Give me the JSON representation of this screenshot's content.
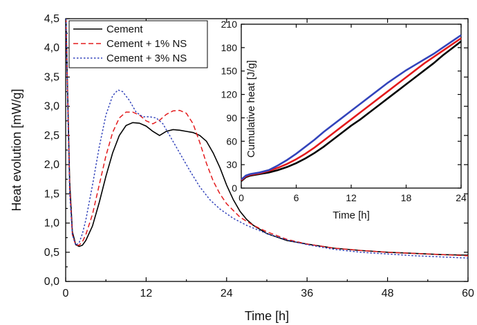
{
  "chart_data": [
    {
      "type": "line",
      "title": "",
      "xlabel": "Time [h]",
      "ylabel": "Heat evolution [mW/g]",
      "xlim": [
        0,
        60
      ],
      "ylim": [
        0,
        4.5
      ],
      "xticks": [
        "0",
        "12",
        "24",
        "36",
        "48",
        "60"
      ],
      "yticks": [
        "0,0",
        "0,5",
        "1,0",
        "1,5",
        "2,0",
        "2,5",
        "3,0",
        "3,5",
        "4,0",
        "4,5"
      ],
      "grid": false,
      "legend_position": "top-left",
      "series": [
        {
          "name": "Cement",
          "color": "#000000",
          "style": "solid",
          "points": [
            [
              0.05,
              4.5
            ],
            [
              0.3,
              3.2
            ],
            [
              0.6,
              1.7
            ],
            [
              1.0,
              0.85
            ],
            [
              1.5,
              0.63
            ],
            [
              2.0,
              0.6
            ],
            [
              2.5,
              0.62
            ],
            [
              3.0,
              0.7
            ],
            [
              4.0,
              0.95
            ],
            [
              5.0,
              1.35
            ],
            [
              6.0,
              1.8
            ],
            [
              7.0,
              2.2
            ],
            [
              8.0,
              2.5
            ],
            [
              9.0,
              2.67
            ],
            [
              10.0,
              2.72
            ],
            [
              11.0,
              2.71
            ],
            [
              12.0,
              2.66
            ],
            [
              13.0,
              2.57
            ],
            [
              14.0,
              2.5
            ],
            [
              15.0,
              2.57
            ],
            [
              16.0,
              2.6
            ],
            [
              17.0,
              2.59
            ],
            [
              18.0,
              2.57
            ],
            [
              19.0,
              2.55
            ],
            [
              20.0,
              2.5
            ],
            [
              21.0,
              2.4
            ],
            [
              22.0,
              2.2
            ],
            [
              23.0,
              1.95
            ],
            [
              24.0,
              1.65
            ],
            [
              25.0,
              1.4
            ],
            [
              26.0,
              1.2
            ],
            [
              27.0,
              1.06
            ],
            [
              28.0,
              0.96
            ],
            [
              30.0,
              0.82
            ],
            [
              33.0,
              0.7
            ],
            [
              36.0,
              0.64
            ],
            [
              40.0,
              0.57
            ],
            [
              44.0,
              0.53
            ],
            [
              48.0,
              0.5
            ],
            [
              52.0,
              0.48
            ],
            [
              56.0,
              0.46
            ],
            [
              60.0,
              0.45
            ]
          ]
        },
        {
          "name": "Cement + 1% NS",
          "color": "#e31a1c",
          "style": "dashed",
          "points": [
            [
              0.05,
              4.5
            ],
            [
              0.3,
              3.1
            ],
            [
              0.6,
              1.6
            ],
            [
              1.0,
              0.8
            ],
            [
              1.5,
              0.62
            ],
            [
              2.0,
              0.62
            ],
            [
              2.5,
              0.68
            ],
            [
              3.0,
              0.8
            ],
            [
              4.0,
              1.15
            ],
            [
              5.0,
              1.65
            ],
            [
              6.0,
              2.15
            ],
            [
              7.0,
              2.55
            ],
            [
              8.0,
              2.8
            ],
            [
              9.0,
              2.9
            ],
            [
              10.0,
              2.9
            ],
            [
              11.0,
              2.85
            ],
            [
              12.0,
              2.75
            ],
            [
              13.0,
              2.7
            ],
            [
              14.0,
              2.76
            ],
            [
              15.0,
              2.86
            ],
            [
              16.0,
              2.92
            ],
            [
              17.0,
              2.93
            ],
            [
              18.0,
              2.88
            ],
            [
              19.0,
              2.7
            ],
            [
              20.0,
              2.38
            ],
            [
              21.0,
              2.02
            ],
            [
              22.0,
              1.72
            ],
            [
              23.0,
              1.5
            ],
            [
              24.0,
              1.33
            ],
            [
              26.0,
              1.1
            ],
            [
              28.0,
              0.96
            ],
            [
              30.0,
              0.85
            ],
            [
              33.0,
              0.72
            ],
            [
              36.0,
              0.64
            ],
            [
              40.0,
              0.57
            ],
            [
              44.0,
              0.53
            ],
            [
              48.0,
              0.5
            ],
            [
              52.0,
              0.48
            ],
            [
              56.0,
              0.46
            ],
            [
              60.0,
              0.44
            ]
          ]
        },
        {
          "name": "Cement + 3% NS",
          "color": "#3344bb",
          "style": "dotted",
          "points": [
            [
              0.05,
              4.5
            ],
            [
              0.3,
              3.0
            ],
            [
              0.6,
              1.5
            ],
            [
              1.0,
              0.8
            ],
            [
              1.5,
              0.62
            ],
            [
              2.0,
              0.66
            ],
            [
              2.5,
              0.82
            ],
            [
              3.0,
              1.05
            ],
            [
              4.0,
              1.65
            ],
            [
              5.0,
              2.3
            ],
            [
              6.0,
              2.85
            ],
            [
              7.0,
              3.18
            ],
            [
              7.8,
              3.28
            ],
            [
              8.5,
              3.25
            ],
            [
              9.5,
              3.1
            ],
            [
              10.5,
              2.9
            ],
            [
              11.5,
              2.82
            ],
            [
              12.5,
              2.82
            ],
            [
              13.5,
              2.8
            ],
            [
              14.5,
              2.7
            ],
            [
              15.5,
              2.5
            ],
            [
              17.0,
              2.2
            ],
            [
              18.5,
              1.9
            ],
            [
              20.0,
              1.62
            ],
            [
              21.5,
              1.4
            ],
            [
              23.0,
              1.24
            ],
            [
              25.0,
              1.08
            ],
            [
              27.0,
              0.96
            ],
            [
              30.0,
              0.82
            ],
            [
              33.0,
              0.71
            ],
            [
              36.0,
              0.63
            ],
            [
              40.0,
              0.55
            ],
            [
              44.0,
              0.5
            ],
            [
              48.0,
              0.47
            ],
            [
              52.0,
              0.44
            ],
            [
              56.0,
              0.42
            ],
            [
              60.0,
              0.4
            ]
          ]
        }
      ]
    },
    {
      "type": "line",
      "title": "",
      "xlabel": "Time [h]",
      "ylabel": "Cumulative heat [J/g]",
      "xlim": [
        0,
        24
      ],
      "ylim": [
        0,
        210
      ],
      "xticks": [
        "0",
        "6",
        "12",
        "18",
        "24"
      ],
      "yticks": [
        "0",
        "30",
        "60",
        "90",
        "120",
        "150",
        "180",
        "210"
      ],
      "grid": false,
      "series": [
        {
          "color": "#000000",
          "points": [
            [
              0,
              9
            ],
            [
              0.5,
              14
            ],
            [
              1,
              16
            ],
            [
              2,
              18
            ],
            [
              3,
              20
            ],
            [
              4,
              23
            ],
            [
              5,
              27
            ],
            [
              6,
              32
            ],
            [
              7,
              38
            ],
            [
              8,
              45
            ],
            [
              9,
              53
            ],
            [
              10,
              62
            ],
            [
              11,
              71
            ],
            [
              12,
              80
            ],
            [
              13,
              88
            ],
            [
              14,
              97
            ],
            [
              15,
              106
            ],
            [
              16,
              115
            ],
            [
              17,
              124
            ],
            [
              18,
              133
            ],
            [
              19,
              142
            ],
            [
              20,
              151
            ],
            [
              21,
              160
            ],
            [
              22,
              170
            ],
            [
              23,
              179
            ],
            [
              24,
              188
            ]
          ]
        },
        {
          "color": "#e31a1c",
          "points": [
            [
              0,
              10
            ],
            [
              0.5,
              15
            ],
            [
              1,
              17
            ],
            [
              2,
              19
            ],
            [
              3,
              22
            ],
            [
              4,
              26
            ],
            [
              5,
              31
            ],
            [
              6,
              37
            ],
            [
              7,
              44
            ],
            [
              8,
              52
            ],
            [
              9,
              61
            ],
            [
              10,
              70
            ],
            [
              11,
              79
            ],
            [
              12,
              88
            ],
            [
              13,
              97
            ],
            [
              14,
              106
            ],
            [
              15,
              115
            ],
            [
              16,
              124
            ],
            [
              17,
              133
            ],
            [
              18,
              142
            ],
            [
              19,
              151
            ],
            [
              20,
              160
            ],
            [
              21,
              168
            ],
            [
              22,
              176
            ],
            [
              23,
              184
            ],
            [
              24,
              192
            ]
          ]
        },
        {
          "color": "#3344bb",
          "points": [
            [
              0,
              11
            ],
            [
              0.5,
              16
            ],
            [
              1,
              18
            ],
            [
              2,
              20
            ],
            [
              3,
              23
            ],
            [
              4,
              29
            ],
            [
              5,
              36
            ],
            [
              6,
              44
            ],
            [
              7,
              53
            ],
            [
              8,
              62
            ],
            [
              9,
              72
            ],
            [
              10,
              81
            ],
            [
              11,
              90
            ],
            [
              12,
              99
            ],
            [
              13,
              108
            ],
            [
              14,
              117
            ],
            [
              15,
              126
            ],
            [
              16,
              135
            ],
            [
              17,
              143
            ],
            [
              18,
              151
            ],
            [
              19,
              158
            ],
            [
              20,
              165
            ],
            [
              21,
              172
            ],
            [
              22,
              180
            ],
            [
              23,
              188
            ],
            [
              24,
              196
            ]
          ]
        }
      ]
    }
  ]
}
